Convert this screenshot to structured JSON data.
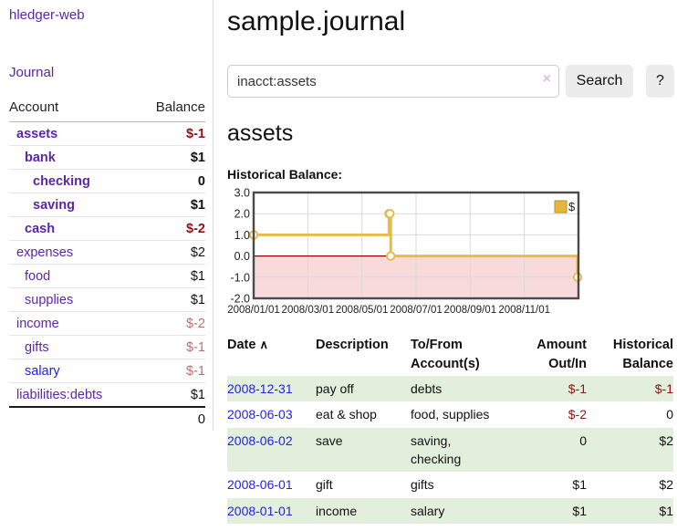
{
  "app": {
    "title": "hledger-web"
  },
  "sidebar": {
    "nav": {
      "journal_label": "Journal"
    },
    "accounts_table": {
      "headers": {
        "account": "Account",
        "balance": "Balance"
      },
      "rows": [
        {
          "name": "assets",
          "balance": "$-1",
          "level": 1,
          "bold": true,
          "neg": "strong"
        },
        {
          "name": "bank",
          "balance": "$1",
          "level": 2,
          "bold": true,
          "neg": "none"
        },
        {
          "name": "checking",
          "balance": "0",
          "level": 3,
          "bold": true,
          "neg": "none"
        },
        {
          "name": "saving",
          "balance": "$1",
          "level": 3,
          "bold": true,
          "neg": "none"
        },
        {
          "name": "cash",
          "balance": "$-2",
          "level": 2,
          "bold": true,
          "neg": "strong"
        },
        {
          "name": "expenses",
          "balance": "$2",
          "level": 1,
          "bold": false,
          "neg": "none"
        },
        {
          "name": "food",
          "balance": "$1",
          "level": 2,
          "bold": false,
          "neg": "none"
        },
        {
          "name": "supplies",
          "balance": "$1",
          "level": 2,
          "bold": false,
          "neg": "none"
        },
        {
          "name": "income",
          "balance": "$-2",
          "level": 1,
          "bold": false,
          "neg": "soft"
        },
        {
          "name": "gifts",
          "balance": "$-1",
          "level": 2,
          "bold": false,
          "neg": "soft"
        },
        {
          "name": "salary",
          "balance": "$-1",
          "level": 2,
          "bold": false,
          "neg": "soft",
          "link_color": "blue"
        },
        {
          "name": "liabilities:debts",
          "balance": "$1",
          "level": 1,
          "bold": false,
          "neg": "none"
        }
      ],
      "total": "0"
    }
  },
  "main": {
    "title": "sample.journal",
    "search": {
      "value": "inacct:assets",
      "clear_icon": "×",
      "button_label": "Search",
      "help_label": "?"
    },
    "account_heading": "assets",
    "chart_heading": "Historical Balance:"
  },
  "chart_data": {
    "type": "line",
    "step": true,
    "title": "Historical Balance",
    "legend": [
      "$"
    ],
    "legend_position": "top-right",
    "points": [
      {
        "date": "2008-01-01",
        "value": 1
      },
      {
        "date": "2008-06-01",
        "value": 2
      },
      {
        "date": "2008-06-02",
        "value": 2
      },
      {
        "date": "2008-06-03",
        "value": 0
      },
      {
        "date": "2008-12-31",
        "value": -1
      }
    ],
    "x_ticks": [
      "2008/01/01",
      "2008/03/01",
      "2008/05/01",
      "2008/07/01",
      "2008/09/01",
      "2008/11/01"
    ],
    "y_ticks": [
      "3.0",
      "2.0",
      "1.0",
      "0.0",
      "-1.0",
      "-2.0"
    ],
    "ylim": [
      -2,
      3
    ],
    "xlim_months": [
      0,
      12
    ],
    "grid": true,
    "negative_fill": true,
    "colors": {
      "line": "#e8bb4a",
      "marker_fill": "#ffffff",
      "fill_negative": "#f9dada",
      "zero_line": "#8b0000",
      "grid": "#d9d9d9",
      "border": "#4a4a4a",
      "legend_fill": "#e5b63d",
      "legend_border": "#b8912f"
    }
  },
  "register": {
    "headers": {
      "date": "Date",
      "sort_icon": "∧",
      "description": "Description",
      "accounts": "To/From Account(s)",
      "amount": "Amount Out/In",
      "balance": "Historical Balance"
    },
    "rows": [
      {
        "date": "2008-12-31",
        "description": "pay off",
        "accounts": "debts",
        "amount": "$-1",
        "balance": "$-1",
        "amount_neg": true,
        "balance_neg": true
      },
      {
        "date": "2008-06-03",
        "description": "eat & shop",
        "accounts": "food, supplies",
        "amount": "$-2",
        "balance": "0",
        "amount_neg": true,
        "balance_neg": false
      },
      {
        "date": "2008-06-02",
        "description": "save",
        "accounts": "saving, checking",
        "amount": "0",
        "balance": "$2",
        "amount_neg": false,
        "balance_neg": false
      },
      {
        "date": "2008-06-01",
        "description": "gift",
        "accounts": "gifts",
        "amount": "$1",
        "balance": "$2",
        "amount_neg": false,
        "balance_neg": false
      },
      {
        "date": "2008-01-01",
        "description": "income",
        "accounts": "salary",
        "amount": "$1",
        "balance": "$1",
        "amount_neg": false,
        "balance_neg": false
      }
    ]
  },
  "ui_colors": {
    "link_purple": "#5c26a8",
    "link_blue": "#2222dd",
    "negative_strong": "#8f1111",
    "negative_soft": "#b96f6f",
    "row_green": "#e2efdd",
    "button_bg": "#ececec"
  }
}
